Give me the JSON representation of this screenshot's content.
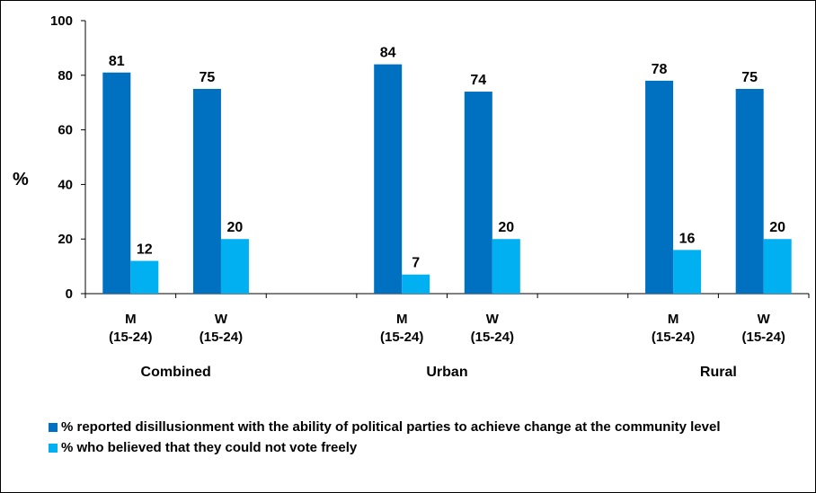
{
  "chart_data": {
    "type": "bar",
    "ylabel": "%",
    "ylim": [
      0,
      100
    ],
    "yticks": [
      "0",
      "20",
      "40",
      "60",
      "80",
      "100"
    ],
    "groups": [
      {
        "label": "Combined",
        "categories": [
          {
            "label1": "M",
            "label2": "(15-24)",
            "values": [
              81,
              12
            ]
          },
          {
            "label1": "W",
            "label2": "(15-24)",
            "values": [
              75,
              20
            ]
          }
        ]
      },
      {
        "label": "Urban",
        "categories": [
          {
            "label1": "M",
            "label2": "(15-24)",
            "values": [
              84,
              7
            ]
          },
          {
            "label1": "W",
            "label2": "(15-24)",
            "values": [
              74,
              20
            ]
          }
        ]
      },
      {
        "label": "Rural",
        "categories": [
          {
            "label1": "M",
            "label2": "(15-24)",
            "values": [
              78,
              16
            ]
          },
          {
            "label1": "W",
            "label2": "(15-24)",
            "values": [
              75,
              20
            ]
          }
        ]
      }
    ],
    "series": [
      {
        "name": "% reported disillusionment with the ability of political parties to achieve change at the community level",
        "color": "#0070C0"
      },
      {
        "name": "% who believed that they could not vote freely",
        "color": "#00B0F0"
      }
    ],
    "grid": false,
    "legend_position": "bottom"
  }
}
